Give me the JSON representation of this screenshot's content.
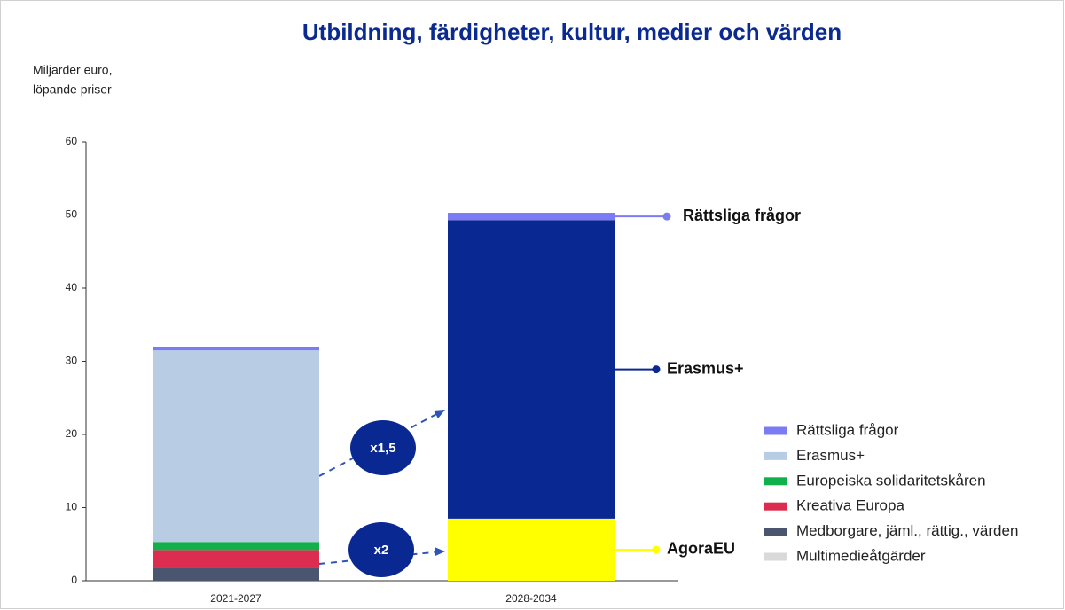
{
  "chart_data": {
    "type": "stacked_bar",
    "title": "Utbildning, färdigheter, kultur, medier och värden",
    "y_label": [
      "Miljarder euro,",
      "löpande priser"
    ],
    "categories": [
      "2021-2027",
      "2028-2034"
    ],
    "ylim": [
      0,
      60
    ],
    "yticks": [
      0,
      10,
      20,
      30,
      40,
      50,
      60
    ],
    "series": [
      {
        "name": "Multimedieåtgärder",
        "color": "#d9d9d9",
        "values": [
          0,
          null
        ]
      },
      {
        "name": "Medborgare, jäml., rättig., värden",
        "color": "#4a5670",
        "values": [
          1.7,
          null
        ]
      },
      {
        "name": "Kreativa Europa",
        "color": "#dc2d50",
        "values": [
          2.5,
          null
        ]
      },
      {
        "name": "Europeiska solidaritetskåren",
        "color": "#12b04a",
        "values": [
          1.1,
          null
        ]
      },
      {
        "name": "AgoraEU",
        "color": "#ffff00",
        "values": [
          null,
          8.5
        ],
        "legend": false,
        "side_label": true
      },
      {
        "name": "Erasmus+",
        "color": "#b8cce4",
        "colors": [
          "#b8cce4",
          "#0a2891"
        ],
        "values": [
          26.2,
          40.8
        ],
        "side_label": true
      },
      {
        "name": "Rättsliga frågor",
        "color": "#7b7bf5",
        "values": [
          0.5,
          1.0
        ],
        "side_label": true
      }
    ],
    "annotations": [
      "x1,5",
      "x2"
    ]
  }
}
